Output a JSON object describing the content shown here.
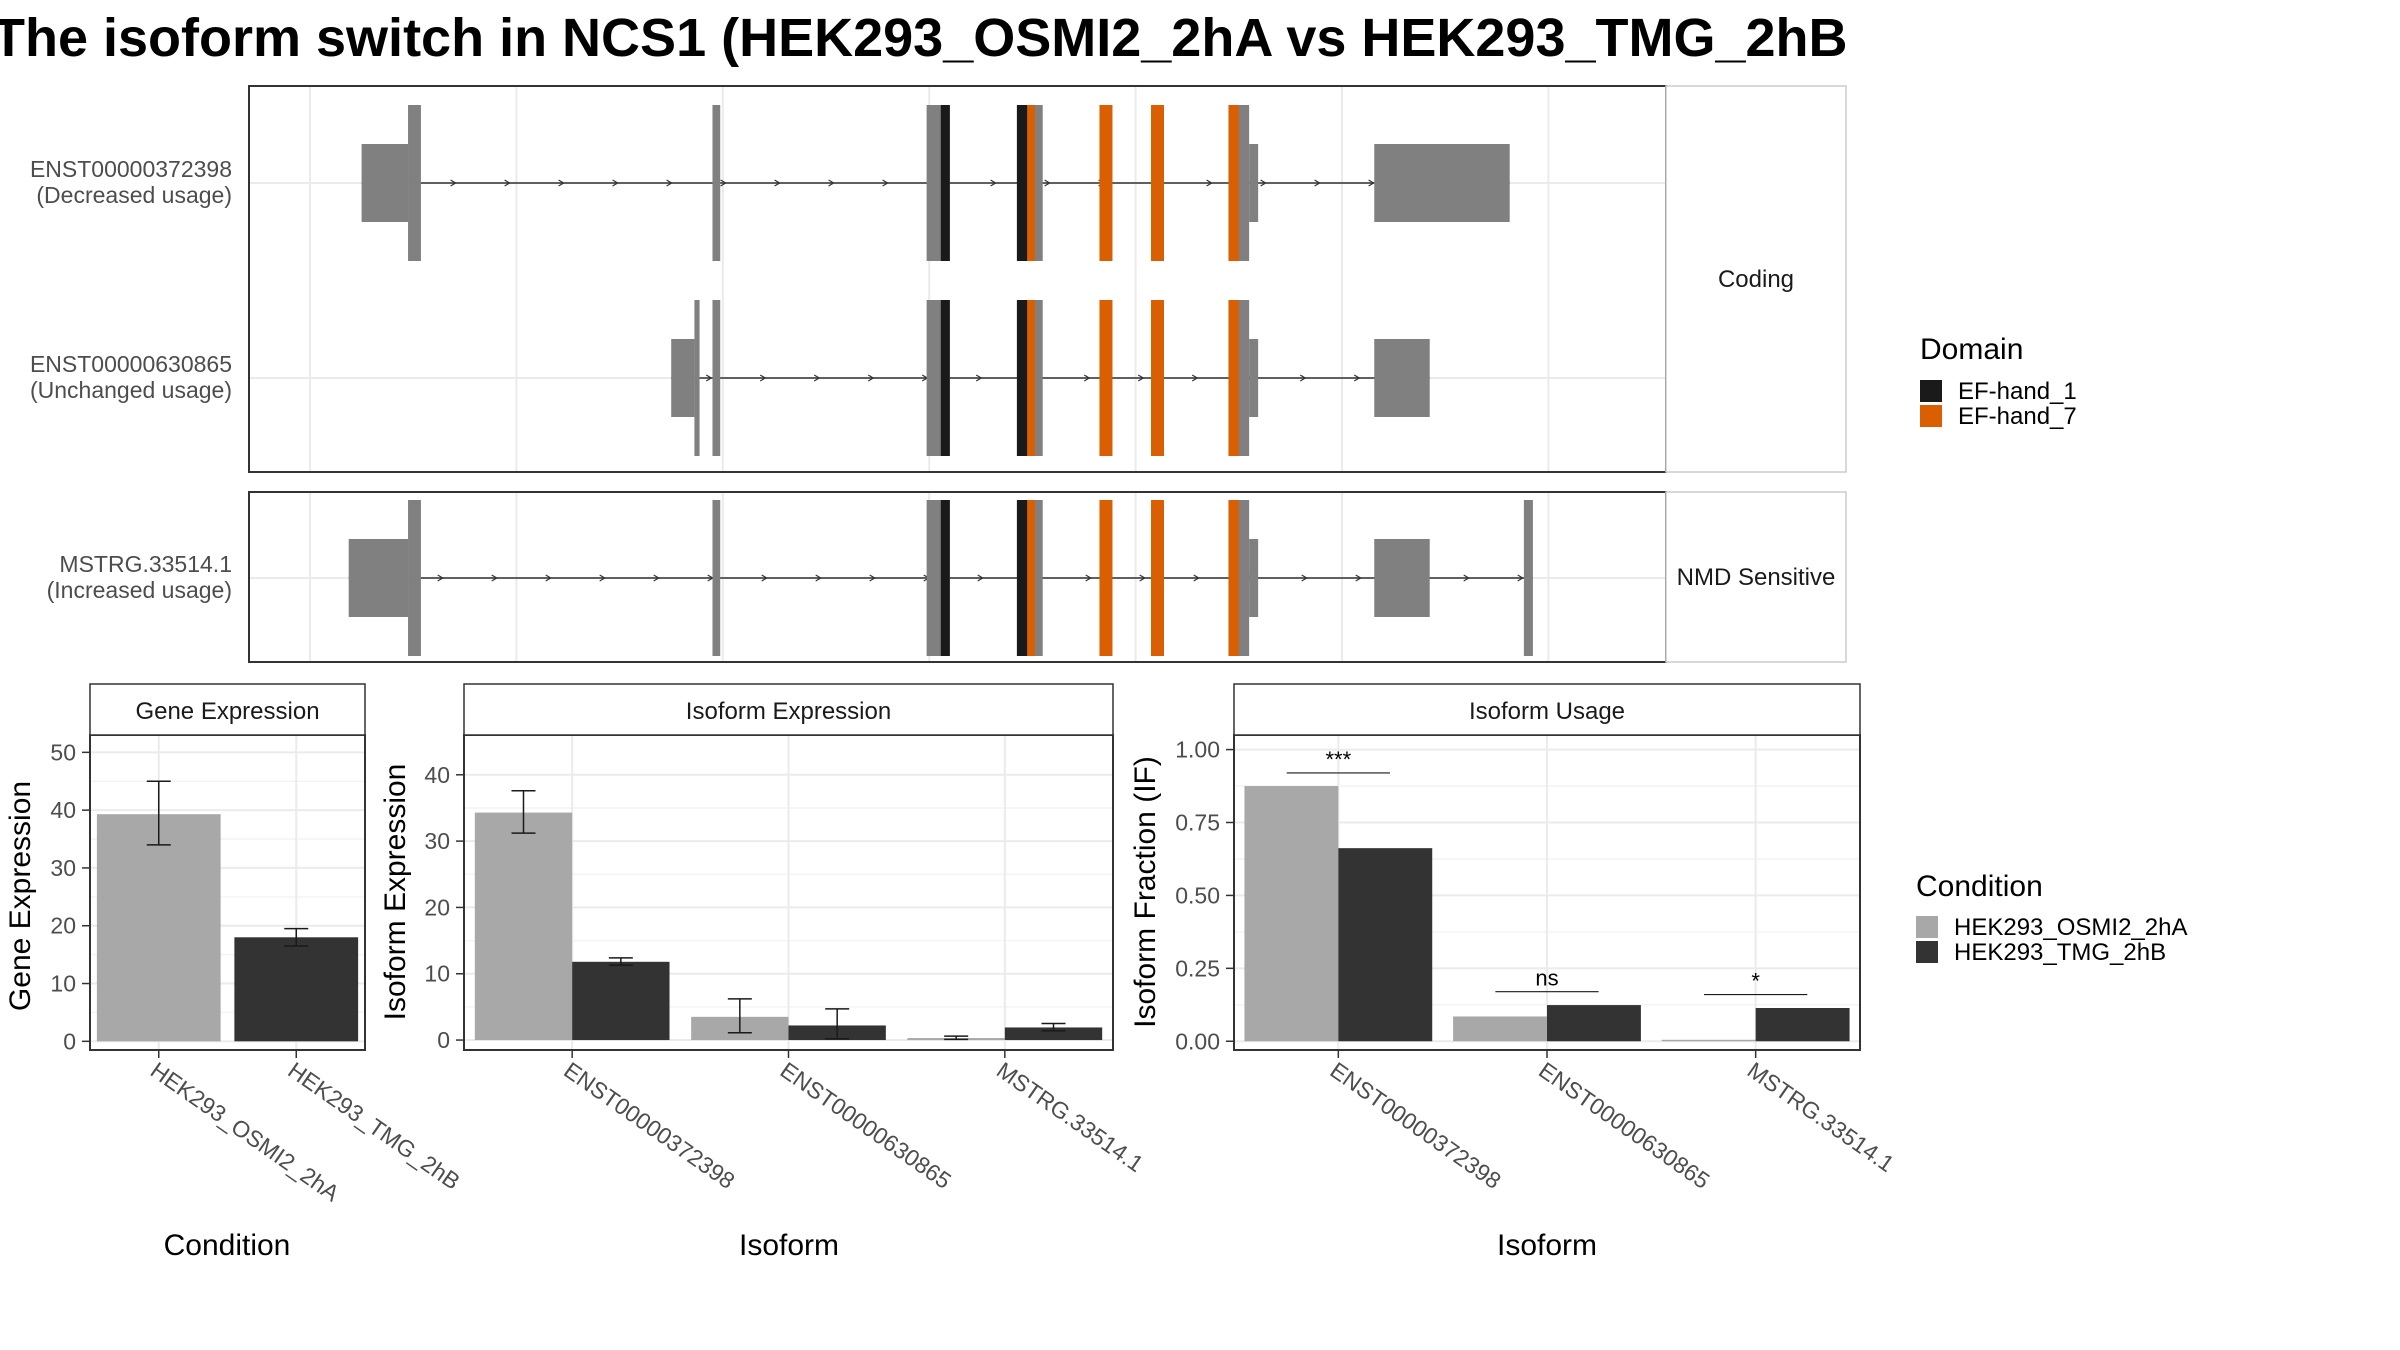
{
  "title": "The isoform switch in NCS1 (HEK293_OSMI2_2hA vs HEK293_TMG_2hB",
  "colors": {
    "exon": "#808080",
    "EF-hand_1": "#1a1a1a",
    "EF-hand_7": "#d95f02",
    "cond_A": "#a8a8a8",
    "cond_B": "#333333",
    "grid": "#ebebeb",
    "frame": "#333333",
    "strip_bg": "#ffffff"
  },
  "legends": {
    "domain": {
      "title": "Domain",
      "items": [
        {
          "label": "EF-hand_1",
          "color": "#1a1a1a"
        },
        {
          "label": "EF-hand_7",
          "color": "#d95f02"
        }
      ]
    },
    "condition": {
      "title": "Condition",
      "items": [
        {
          "label": "HEK293_OSMI2_2hA",
          "color": "#a8a8a8"
        },
        {
          "label": "HEK293_TMG_2hB",
          "color": "#333333"
        }
      ]
    }
  },
  "structure": {
    "panels": [
      {
        "strip": "Coding",
        "transcripts": [
          {
            "id": "ENST00000372398",
            "usage": "(Decreased usage)",
            "span": [
              0.04,
              0.93
            ],
            "exons": [
              {
                "start": 0.04,
                "end": 0.076,
                "coding": false
              },
              {
                "start": 0.076,
                "end": 0.086,
                "coding": true
              },
              {
                "start": 0.312,
                "end": 0.318,
                "coding": true
              },
              {
                "start": 0.478,
                "end": 0.496,
                "coding": true
              },
              {
                "start": 0.548,
                "end": 0.568,
                "coding": true
              },
              {
                "start": 0.612,
                "end": 0.622,
                "coding": true
              },
              {
                "start": 0.652,
                "end": 0.662,
                "coding": true
              },
              {
                "start": 0.712,
                "end": 0.728,
                "coding": true
              },
              {
                "start": 0.728,
                "end": 0.735,
                "coding": false
              },
              {
                "start": 0.825,
                "end": 0.93,
                "coding": false
              }
            ],
            "domains": [
              {
                "name": "EF-hand_1",
                "start": 0.489,
                "end": 0.496
              },
              {
                "name": "EF-hand_1",
                "start": 0.548,
                "end": 0.556
              },
              {
                "name": "EF-hand_7",
                "start": 0.556,
                "end": 0.562
              },
              {
                "name": "EF-hand_7",
                "start": 0.612,
                "end": 0.622
              },
              {
                "name": "EF-hand_7",
                "start": 0.652,
                "end": 0.662
              },
              {
                "name": "EF-hand_7",
                "start": 0.712,
                "end": 0.72
              }
            ]
          },
          {
            "id": "ENST00000630865",
            "usage": "(Unchanged usage)",
            "span": [
              0.28,
              0.868
            ],
            "exons": [
              {
                "start": 0.28,
                "end": 0.298,
                "coding": false
              },
              {
                "start": 0.298,
                "end": 0.302,
                "coding": true
              },
              {
                "start": 0.312,
                "end": 0.318,
                "coding": true
              },
              {
                "start": 0.478,
                "end": 0.496,
                "coding": true
              },
              {
                "start": 0.548,
                "end": 0.568,
                "coding": true
              },
              {
                "start": 0.612,
                "end": 0.622,
                "coding": true
              },
              {
                "start": 0.652,
                "end": 0.662,
                "coding": true
              },
              {
                "start": 0.712,
                "end": 0.728,
                "coding": true
              },
              {
                "start": 0.728,
                "end": 0.735,
                "coding": false
              },
              {
                "start": 0.825,
                "end": 0.868,
                "coding": false
              }
            ],
            "domains": [
              {
                "name": "EF-hand_1",
                "start": 0.489,
                "end": 0.496
              },
              {
                "name": "EF-hand_1",
                "start": 0.548,
                "end": 0.556
              },
              {
                "name": "EF-hand_7",
                "start": 0.556,
                "end": 0.562
              },
              {
                "name": "EF-hand_7",
                "start": 0.612,
                "end": 0.622
              },
              {
                "name": "EF-hand_7",
                "start": 0.652,
                "end": 0.662
              },
              {
                "name": "EF-hand_7",
                "start": 0.712,
                "end": 0.72
              }
            ]
          }
        ]
      },
      {
        "strip": "NMD Sensitive",
        "transcripts": [
          {
            "id": "MSTRG.33514.1",
            "usage": "(Increased usage)",
            "span": [
              0.03,
              0.948
            ],
            "exons": [
              {
                "start": 0.03,
                "end": 0.076,
                "coding": false
              },
              {
                "start": 0.076,
                "end": 0.086,
                "coding": true
              },
              {
                "start": 0.312,
                "end": 0.318,
                "coding": true
              },
              {
                "start": 0.478,
                "end": 0.496,
                "coding": true
              },
              {
                "start": 0.548,
                "end": 0.568,
                "coding": true
              },
              {
                "start": 0.612,
                "end": 0.622,
                "coding": true
              },
              {
                "start": 0.652,
                "end": 0.662,
                "coding": true
              },
              {
                "start": 0.712,
                "end": 0.728,
                "coding": true
              },
              {
                "start": 0.728,
                "end": 0.735,
                "coding": false
              },
              {
                "start": 0.825,
                "end": 0.868,
                "coding": false
              },
              {
                "start": 0.941,
                "end": 0.948,
                "coding": true
              }
            ],
            "domains": [
              {
                "name": "EF-hand_1",
                "start": 0.489,
                "end": 0.496
              },
              {
                "name": "EF-hand_1",
                "start": 0.548,
                "end": 0.556
              },
              {
                "name": "EF-hand_7",
                "start": 0.556,
                "end": 0.562
              },
              {
                "name": "EF-hand_7",
                "start": 0.612,
                "end": 0.622
              },
              {
                "name": "EF-hand_7",
                "start": 0.652,
                "end": 0.662
              },
              {
                "name": "EF-hand_7",
                "start": 0.712,
                "end": 0.72
              }
            ]
          }
        ]
      }
    ]
  },
  "chart_data": [
    {
      "type": "bar",
      "title": "Gene Expression",
      "xlabel": "Condition",
      "ylabel": "Gene Expression",
      "ylim": [
        -1.5,
        53
      ],
      "yticks": [
        0,
        10,
        20,
        30,
        40,
        50
      ],
      "ytick_labels": [
        "0",
        "10",
        "20",
        "30",
        "40",
        "50"
      ],
      "categories": [
        "HEK293_OSMI2_2hA",
        "HEK293_TMG_2hB"
      ],
      "series": [
        {
          "name": "HEK293_OSMI2_2hA",
          "values": [
            39.3,
            null
          ],
          "error": [
            [
              34,
              45
            ],
            null
          ]
        },
        {
          "name": "HEK293_TMG_2hB",
          "values": [
            null,
            18.0
          ],
          "error": [
            null,
            [
              16.5,
              19.5
            ]
          ]
        }
      ],
      "grid": true,
      "dodge": false,
      "significance": []
    },
    {
      "type": "bar",
      "title": "Isoform Expression",
      "xlabel": "Isoform",
      "ylabel": "Isoform Expression",
      "ylim": [
        -1.5,
        46
      ],
      "yticks": [
        0,
        10,
        20,
        30,
        40
      ],
      "ytick_labels": [
        "0",
        "10",
        "20",
        "30",
        "40"
      ],
      "categories": [
        "ENST00000372398",
        "ENST00000630865",
        "MSTRG.33514.1"
      ],
      "series": [
        {
          "name": "HEK293_OSMI2_2hA",
          "values": [
            34.3,
            3.5,
            0.3
          ],
          "error": [
            [
              31.2,
              37.6
            ],
            [
              1.1,
              6.2
            ],
            [
              0.1,
              0.6
            ]
          ]
        },
        {
          "name": "HEK293_TMG_2hB",
          "values": [
            11.8,
            2.2,
            1.9
          ],
          "error": [
            [
              11.3,
              12.4
            ],
            [
              0.2,
              4.7
            ],
            [
              1.4,
              2.5
            ]
          ]
        }
      ],
      "grid": true,
      "dodge": true,
      "significance": []
    },
    {
      "type": "bar",
      "title": "Isoform Usage",
      "xlabel": "Isoform",
      "ylabel": "Isoform Fraction (IF)",
      "ylim": [
        -0.03,
        1.05
      ],
      "yticks": [
        0,
        0.25,
        0.5,
        0.75,
        1.0
      ],
      "ytick_labels": [
        "0.00",
        "0.25",
        "0.50",
        "0.75",
        "1.00"
      ],
      "categories": [
        "ENST00000372398",
        "ENST00000630865",
        "MSTRG.33514.1"
      ],
      "series": [
        {
          "name": "HEK293_OSMI2_2hA",
          "values": [
            0.875,
            0.085,
            0.005
          ],
          "error": null
        },
        {
          "name": "HEK293_TMG_2hB",
          "values": [
            0.662,
            0.124,
            0.114
          ],
          "error": null
        }
      ],
      "grid": true,
      "dodge": true,
      "significance": [
        {
          "category": 0,
          "label": "***",
          "y": 0.92
        },
        {
          "category": 1,
          "label": "ns",
          "y": 0.17
        },
        {
          "category": 2,
          "label": "*",
          "y": 0.16
        }
      ]
    }
  ]
}
